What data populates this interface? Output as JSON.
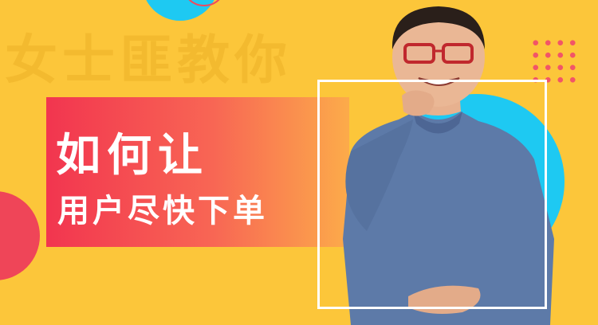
{
  "watermark": {
    "text": "女士匪教你"
  },
  "headline": {
    "line1": "如何让",
    "line2": "用户尽快下单"
  },
  "colors": {
    "background": "#fcc63a",
    "accent_cyan": "#1ec9f2",
    "accent_red": "#ef4558",
    "banner_start": "#f2354f",
    "banner_end": "#fcab4a",
    "frame": "#ffffff"
  }
}
